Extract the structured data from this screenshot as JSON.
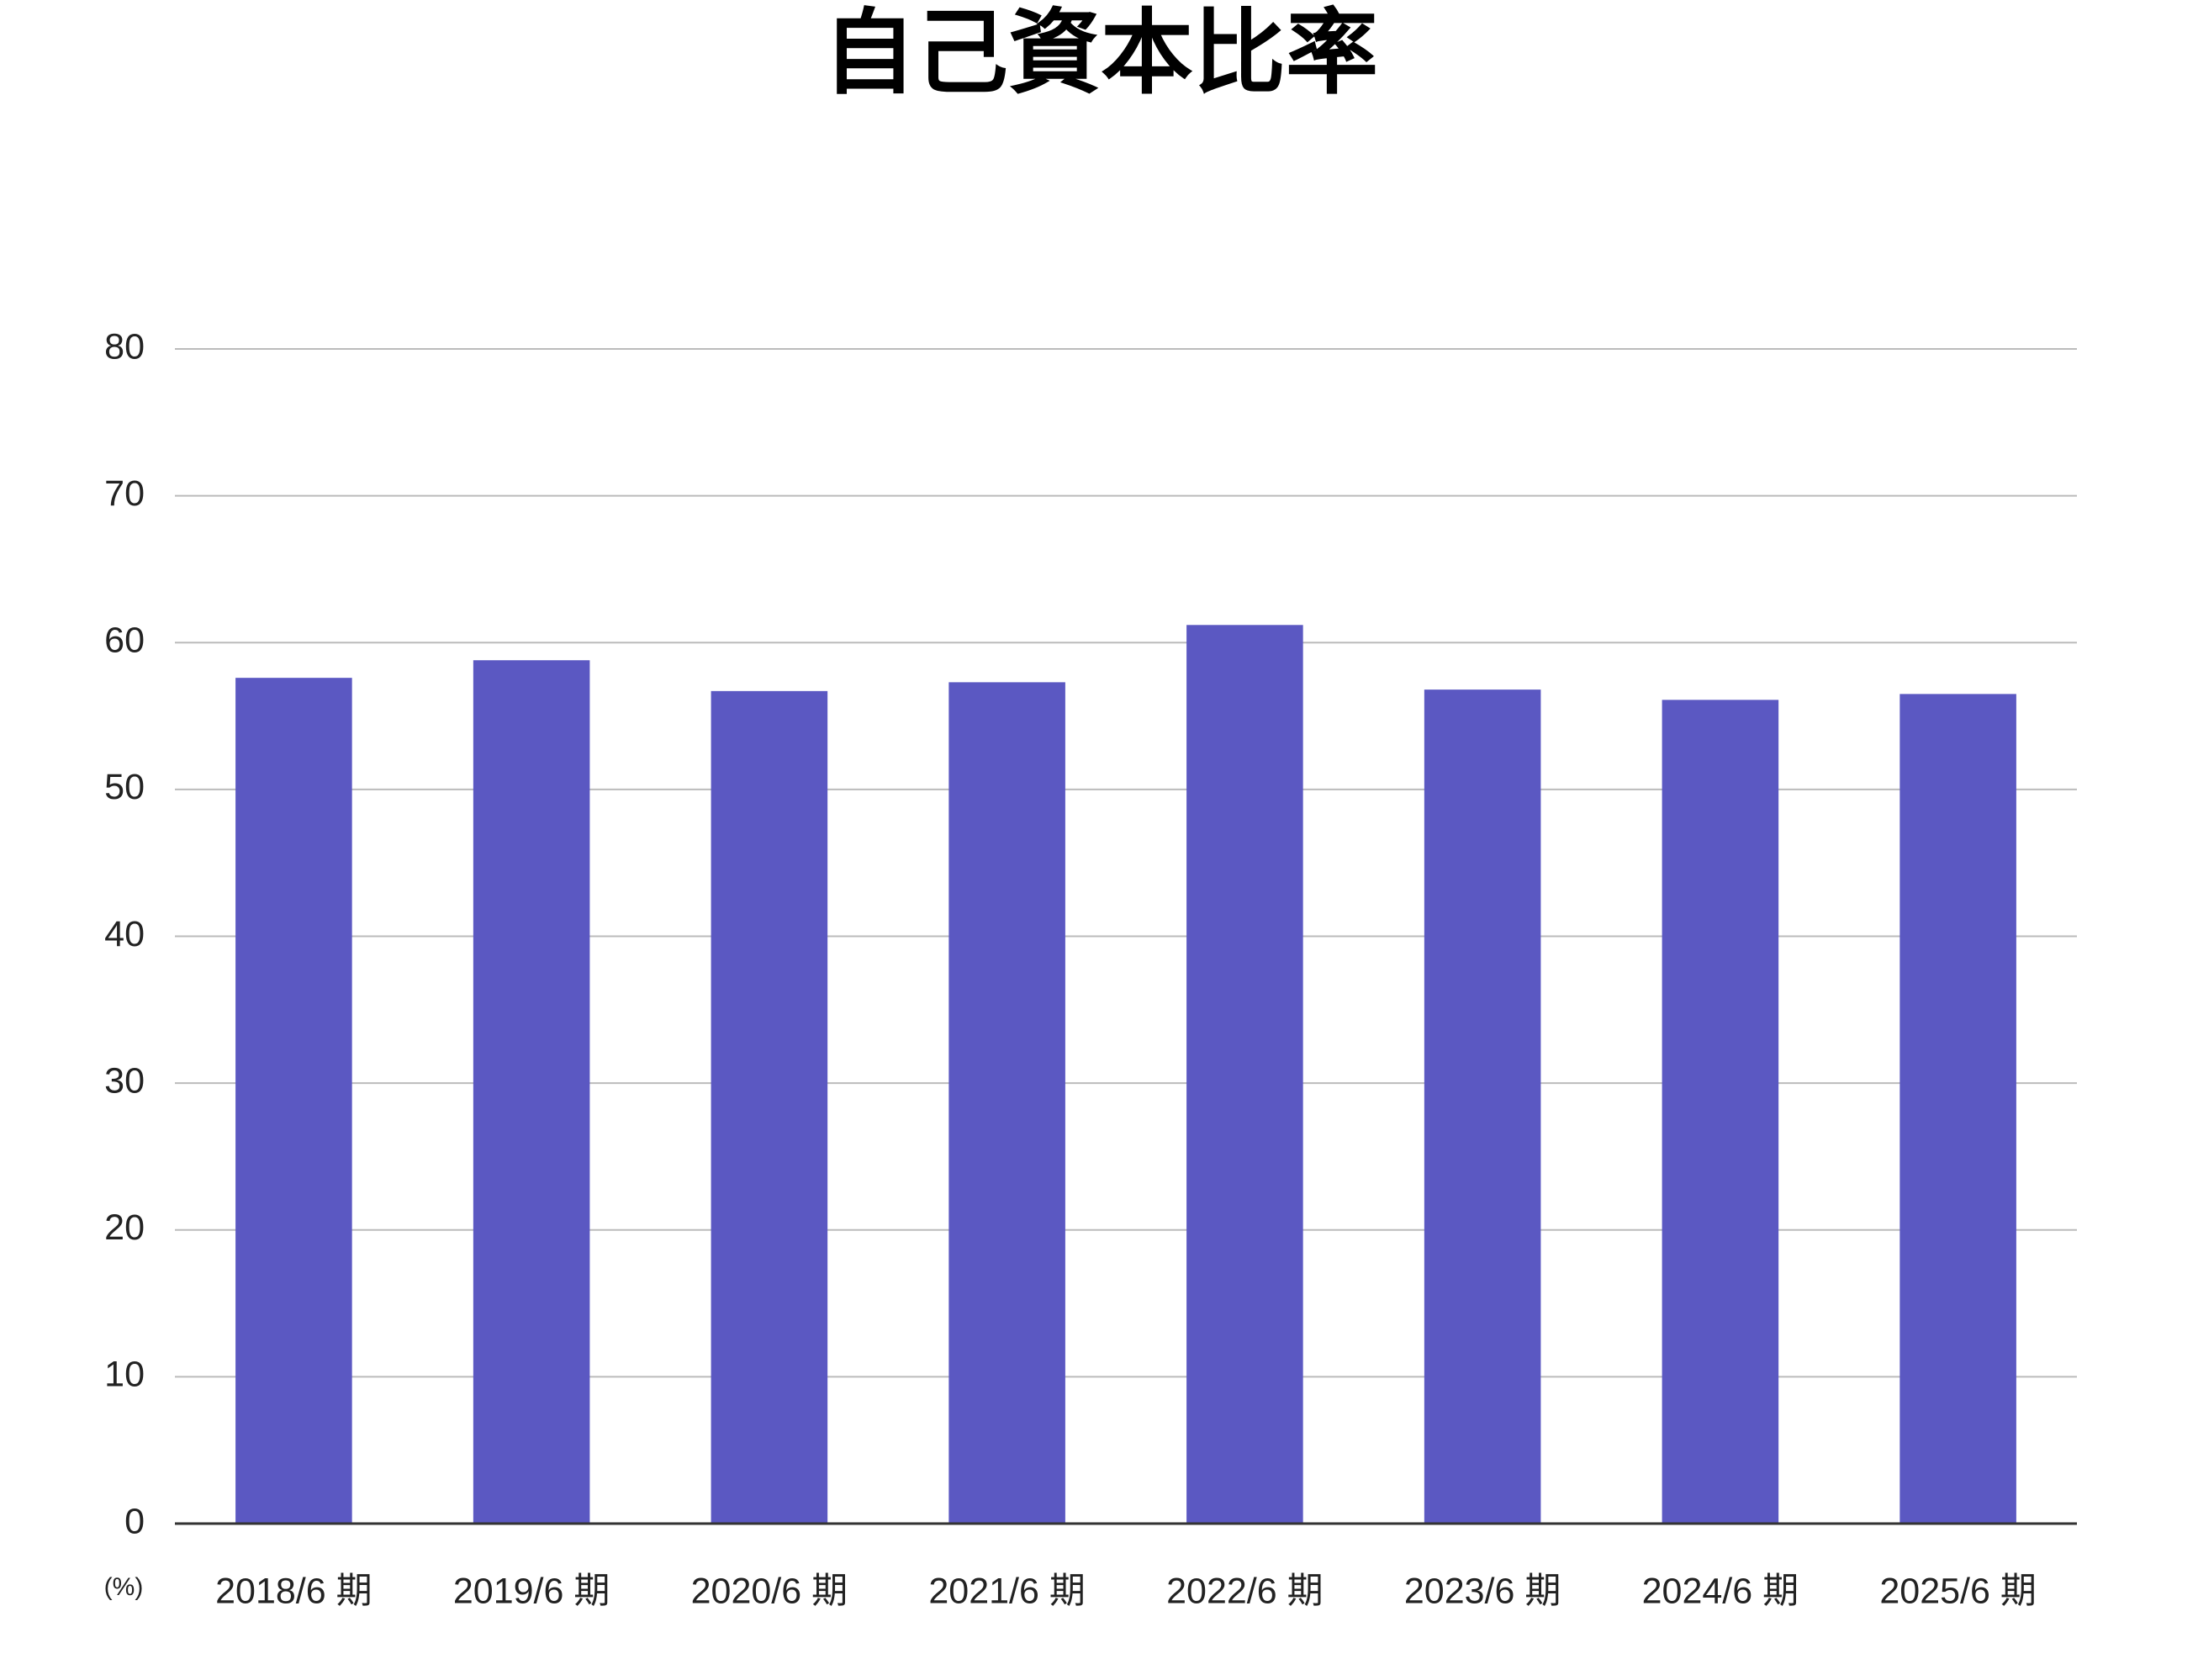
{
  "chart_data": {
    "type": "bar",
    "title": "自己資本比率",
    "unit_label": "(%)",
    "categories": [
      "2018/6 期",
      "2019/6 期",
      "2020/6 期",
      "2021/6 期",
      "2022/6 期",
      "2023/6 期",
      "2024/6 期",
      "2025/6 期"
    ],
    "values": [
      57.6,
      58.8,
      56.7,
      57.3,
      61.2,
      56.8,
      56.1,
      56.5
    ],
    "color": "#5b58c2",
    "ylim": [
      0,
      80
    ],
    "yticks": [
      0,
      10,
      20,
      30,
      40,
      50,
      60,
      70,
      80
    ],
    "grid": true
  }
}
